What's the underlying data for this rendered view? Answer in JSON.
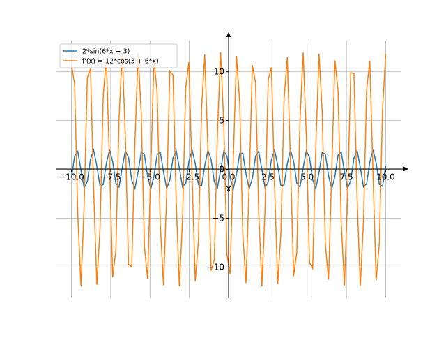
{
  "chart_data": {
    "type": "line",
    "xlabel": "x",
    "x": [
      -10,
      -9.798,
      -9.596,
      -9.394,
      -9.192,
      -8.99,
      -8.788,
      -8.586,
      -8.384,
      -8.182,
      -7.98,
      -7.778,
      -7.576,
      -7.374,
      -7.172,
      -6.97,
      -6.768,
      -6.566,
      -6.364,
      -6.162,
      -5.96,
      -5.758,
      -5.556,
      -5.354,
      -5.152,
      -4.949,
      -4.747,
      -4.545,
      -4.343,
      -4.141,
      -3.939,
      -3.737,
      -3.535,
      -3.333,
      -3.131,
      -2.929,
      -2.727,
      -2.525,
      -2.323,
      -2.121,
      -1.919,
      -1.717,
      -1.515,
      -1.313,
      -1.111,
      -0.909,
      -0.707,
      -0.505,
      -0.303,
      -0.101,
      0.101,
      0.303,
      0.505,
      0.707,
      0.909,
      1.111,
      1.313,
      1.515,
      1.717,
      1.919,
      2.121,
      2.323,
      2.525,
      2.727,
      2.929,
      3.131,
      3.333,
      3.535,
      3.737,
      3.939,
      4.141,
      4.343,
      4.545,
      4.747,
      4.949,
      5.152,
      5.354,
      5.556,
      5.758,
      5.96,
      6.162,
      6.364,
      6.566,
      6.768,
      6.97,
      7.172,
      7.374,
      7.576,
      7.778,
      7.98,
      8.182,
      8.384,
      8.586,
      8.788,
      8.99,
      9.192,
      9.394,
      9.596,
      9.798,
      10
    ],
    "series": [
      {
        "name": "2*sin(6*x + 3)",
        "color": "#1f77b4",
        "values": [
          -0.87,
          1.38,
          1.84,
          -0.09,
          -1.9,
          -1.25,
          1.03,
          1.97,
          0.36,
          -1.72,
          -1.56,
          0.62,
          2.0,
          0.78,
          -1.45,
          -1.8,
          0.19,
          1.93,
          1.17,
          -1.11,
          -1.95,
          -0.26,
          1.77,
          1.5,
          -0.71,
          -2.0,
          -0.69,
          1.52,
          1.75,
          -0.28,
          -1.95,
          -1.09,
          1.19,
          1.92,
          0.16,
          -1.81,
          -1.43,
          0.81,
          2.0,
          0.6,
          -1.58,
          -1.7,
          0.38,
          1.97,
          1.0,
          -1.27,
          -1.89,
          -0.06,
          1.85,
          1.36,
          -0.9,
          -1.99,
          -0.5,
          1.64,
          1.65,
          -0.48,
          -1.99,
          -0.92,
          1.34,
          1.86,
          -0.04,
          -1.89,
          -1.29,
          0.98,
          1.98,
          0.4,
          -1.69,
          -1.59,
          0.57,
          2.0,
          0.83,
          -1.41,
          -1.82,
          0.14,
          1.92,
          1.21,
          -1.07,
          -1.96,
          -0.31,
          1.74,
          1.53,
          -0.67,
          -2.0,
          -0.73,
          1.48,
          1.78,
          -0.24,
          -1.94,
          -1.13,
          1.15,
          1.94,
          0.21,
          -1.79,
          -1.46,
          0.76,
          2.0,
          0.64,
          -1.55,
          -1.73,
          0.33
        ]
      },
      {
        "name": "f'(x) = 12*cos(3 + 6*x)",
        "color": "#ff7f0e",
        "values": [
          10.8,
          8.69,
          -4.7,
          -11.99,
          -3.72,
          9.38,
          10.3,
          -2.14,
          -11.81,
          -6.15,
          7.49,
          11.41,
          0.52,
          -11.04,
          -8.27,
          5.25,
          11.95,
          3.15,
          -9.74,
          -9.99,
          2.72,
          11.9,
          5.63,
          -7.95,
          -11.21,
          0.08,
          11.26,
          7.83,
          -5.76,
          -11.88,
          -2.57,
          10.07,
          9.64,
          -3.3,
          -11.96,
          -5.1,
          8.38,
          10.98,
          -0.67,
          -11.46,
          -7.36,
          6.28,
          11.78,
          1.99,
          -10.38,
          -9.27,
          3.87,
          11.99,
          4.55,
          -8.8,
          -10.73,
          1.27,
          11.62,
          6.89,
          -6.78,
          -11.65,
          -1.4,
          10.67,
          8.89,
          -4.43,
          -12.0,
          -3.99,
          9.19,
          10.45,
          -1.86,
          -11.75,
          -6.39,
          7.26,
          11.49,
          0.81,
          -10.93,
          -8.48,
          4.98,
          11.97,
          3.43,
          -9.56,
          -10.15,
          2.44,
          11.86,
          5.88,
          -7.73,
          -11.31,
          -0.21,
          11.16,
          8.05,
          -5.51,
          -11.92,
          -2.85,
          9.91,
          9.81,
          -3.02,
          -11.94,
          -5.35,
          8.17,
          11.1,
          -0.38,
          -11.36,
          -7.59,
          6.04,
          11.83
        ]
      }
    ],
    "xlim": [
      -11,
      11
    ],
    "ylim": [
      -13.2,
      13.2
    ],
    "xticks": [
      {
        "value": -10,
        "label": "−10.0"
      },
      {
        "value": -7.5,
        "label": "−7.5"
      },
      {
        "value": -5,
        "label": "−5.0"
      },
      {
        "value": -2.5,
        "label": "−2.5"
      },
      {
        "value": 0,
        "label": "0.0"
      },
      {
        "value": 2.5,
        "label": "2.5"
      },
      {
        "value": 5,
        "label": "5.0"
      },
      {
        "value": 7.5,
        "label": "7.5"
      },
      {
        "value": 10,
        "label": "10.0"
      }
    ],
    "yticks": [
      {
        "value": -10,
        "label": "−10"
      },
      {
        "value": -5,
        "label": "−5"
      },
      0,
      5,
      10
    ],
    "grid": true,
    "legend": "upper left"
  }
}
